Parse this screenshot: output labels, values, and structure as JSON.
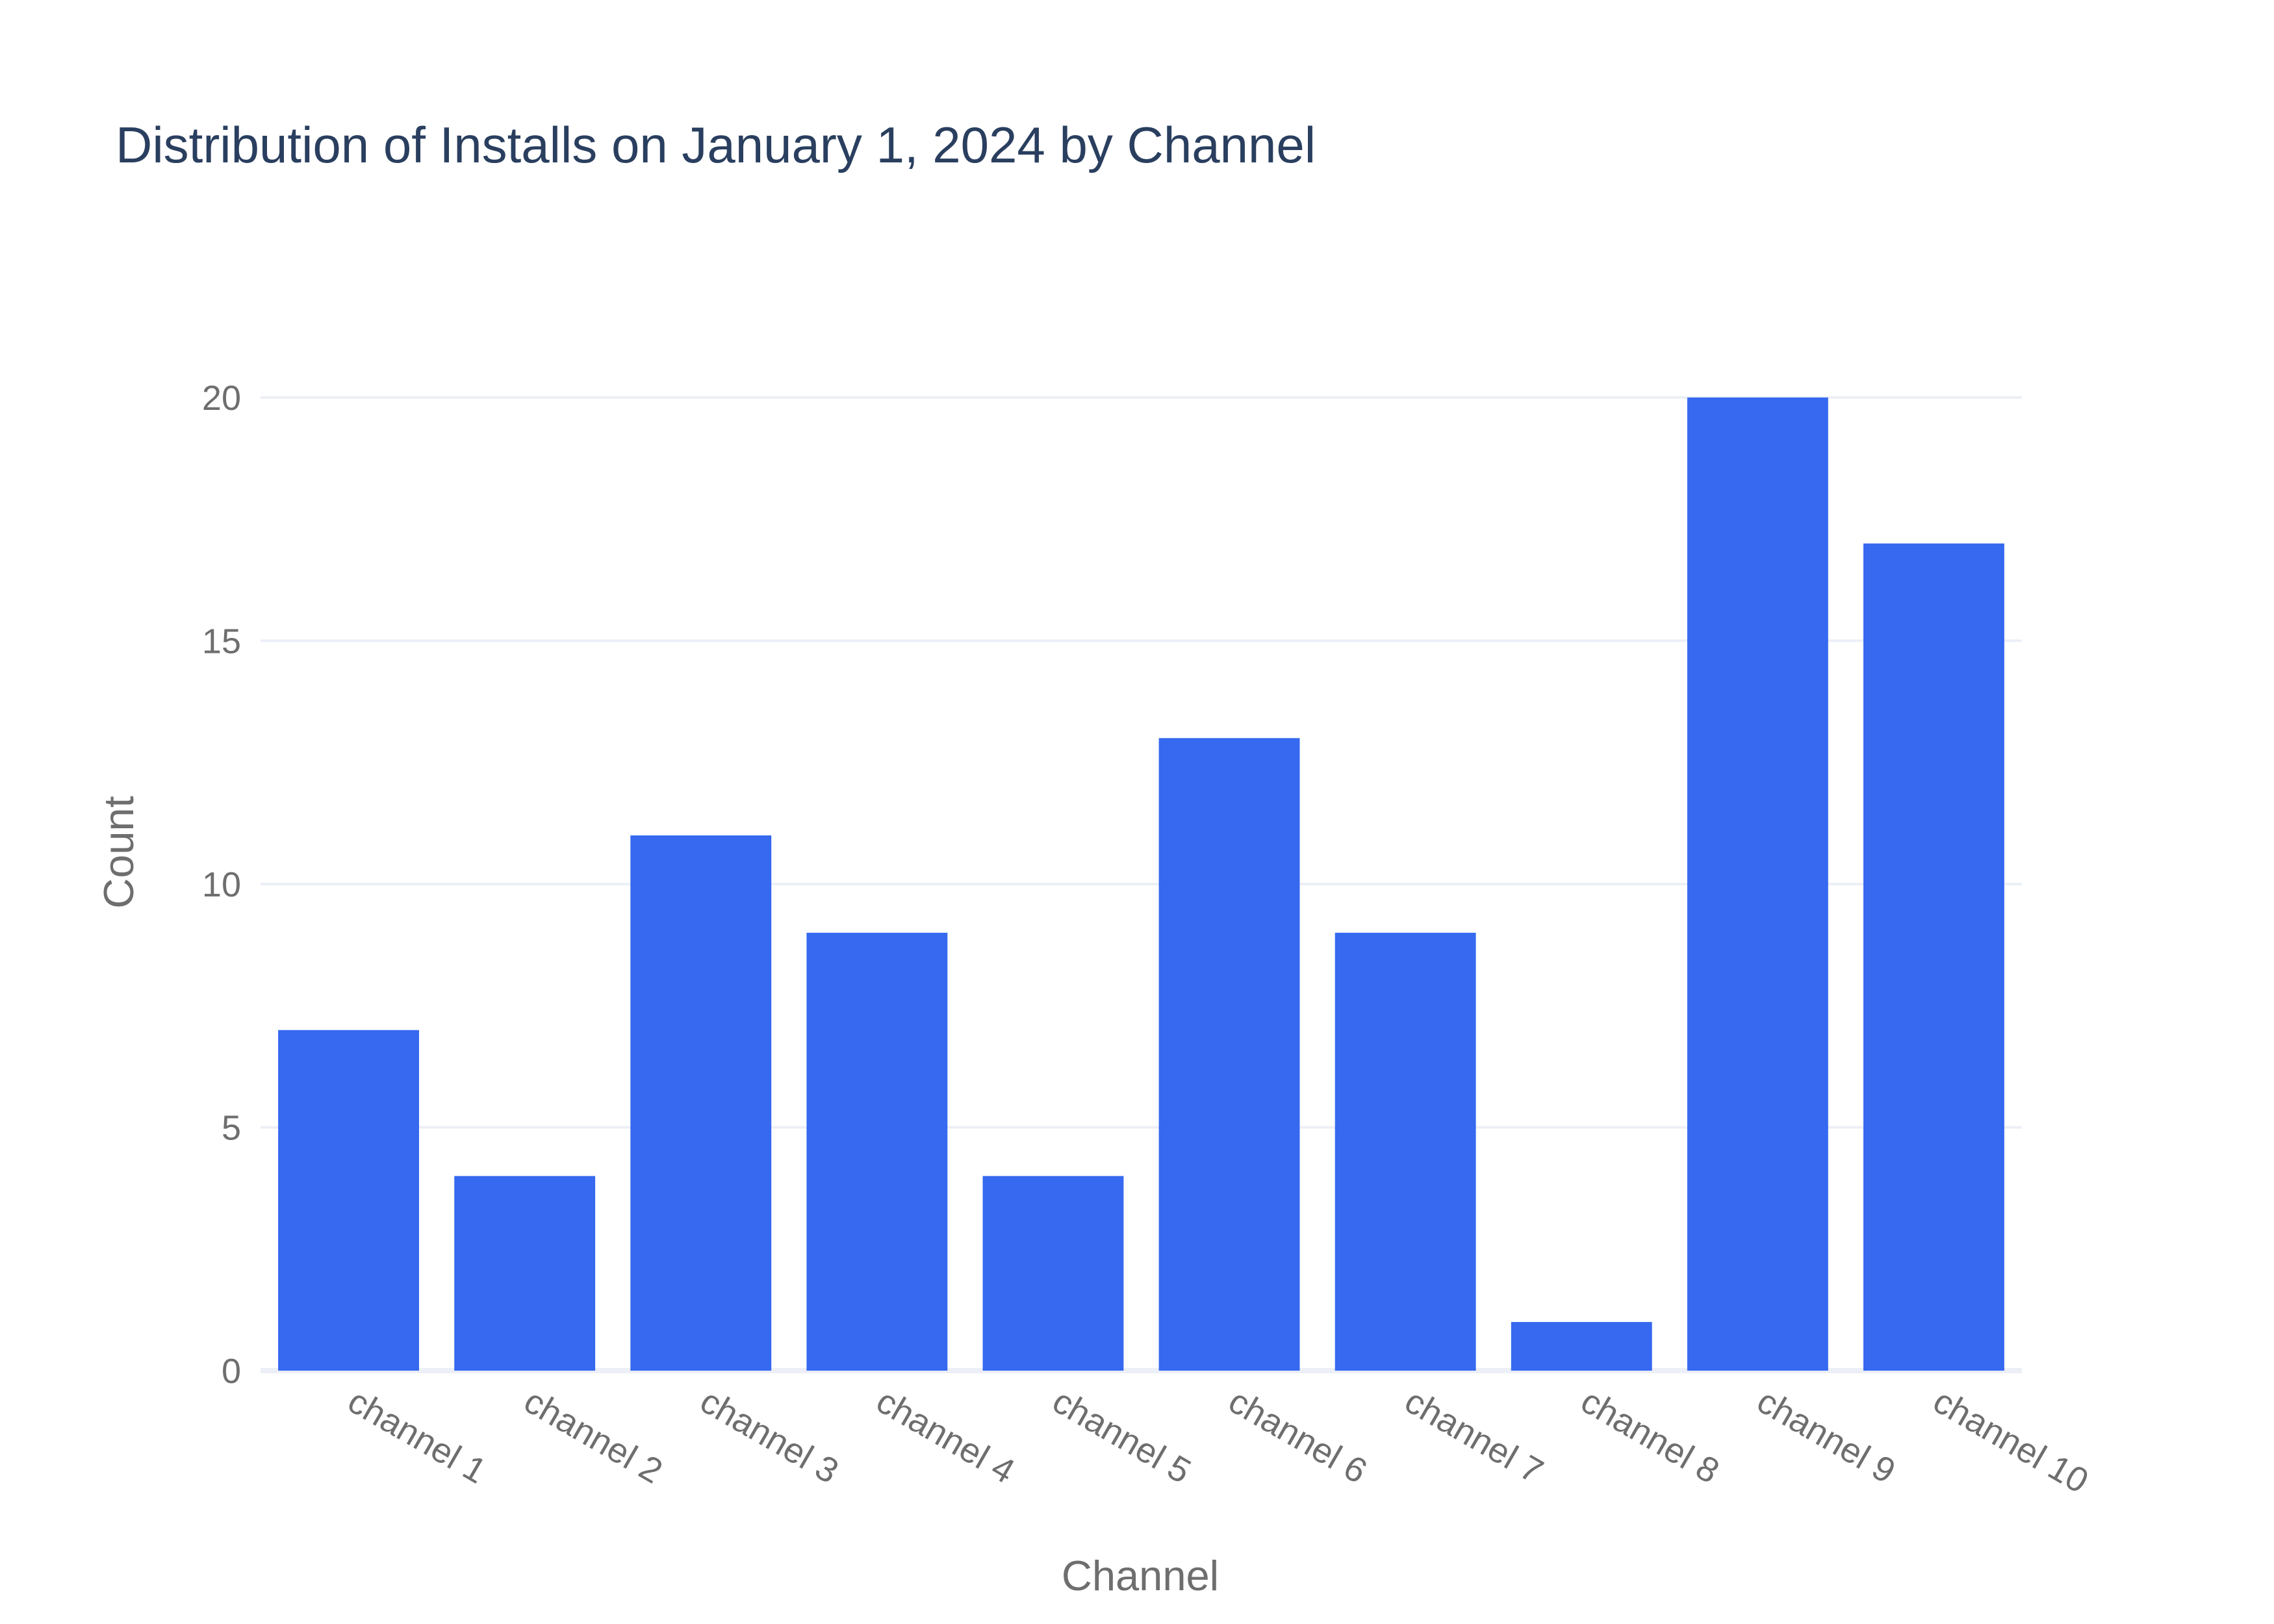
{
  "chart_data": {
    "type": "bar",
    "title": "Distribution of Installs on January 1, 2024 by Channel",
    "xlabel": "Channel",
    "ylabel": "Count",
    "categories": [
      "channel 1",
      "channel 2",
      "channel 3",
      "channel 4",
      "channel 5",
      "channel 6",
      "channel 7",
      "channel 8",
      "channel 9",
      "channel 10"
    ],
    "values": [
      7,
      4,
      11,
      9,
      4,
      13,
      9,
      1,
      20,
      17
    ],
    "ylim": [
      0,
      21
    ],
    "yticks": [
      0,
      5,
      10,
      15,
      20
    ],
    "grid": true,
    "legend": "none"
  },
  "colors": {
    "bar": "#3669EF",
    "title": "#2A3F5F",
    "axis_text": "#6E6E6E",
    "grid": "#ECEFF6",
    "background": "#FFFFFF"
  }
}
